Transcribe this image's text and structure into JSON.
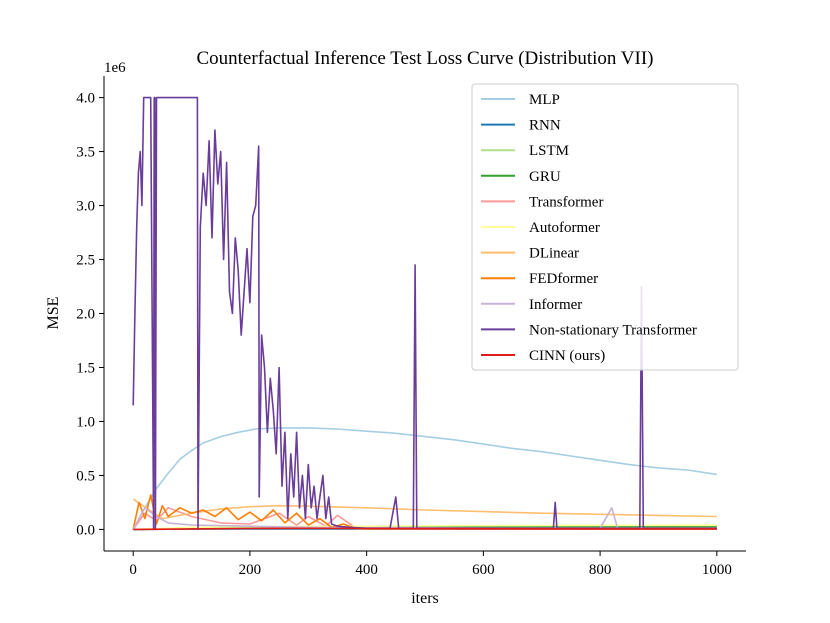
{
  "chart_data": {
    "type": "line",
    "title": "Counterfactual Inference Test Loss Curve (Distribution VII)",
    "xlabel": "iters",
    "ylabel": "MSE",
    "y_scale_label": "1e6",
    "xlim": [
      -50,
      1050
    ],
    "ylim": [
      -200000,
      4200000
    ],
    "x_ticks": [
      0,
      200,
      400,
      600,
      800,
      1000
    ],
    "x_tick_labels": [
      "0",
      "200",
      "400",
      "600",
      "800",
      "1000"
    ],
    "y_ticks": [
      0,
      500000,
      1000000,
      1500000,
      2000000,
      2500000,
      3000000,
      3500000,
      4000000
    ],
    "y_tick_labels": [
      "0.0",
      "0.5",
      "1.0",
      "1.5",
      "2.0",
      "2.5",
      "3.0",
      "3.5",
      "4.0"
    ],
    "legend_location": "upper-right",
    "series": [
      {
        "name": "MLP",
        "color": "#a6cee3",
        "x": [
          0,
          20,
          40,
          60,
          80,
          100,
          120,
          150,
          180,
          210,
          250,
          300,
          350,
          400,
          450,
          500,
          550,
          600,
          650,
          700,
          750,
          800,
          850,
          900,
          950,
          1000
        ],
        "y": [
          0,
          200000,
          380000,
          520000,
          650000,
          730000,
          800000,
          860000,
          900000,
          930000,
          940000,
          940000,
          930000,
          910000,
          890000,
          860000,
          830000,
          790000,
          750000,
          720000,
          680000,
          640000,
          600000,
          570000,
          550000,
          510000
        ]
      },
      {
        "name": "RNN",
        "color": "#1f78b4",
        "x": [
          0,
          100,
          200,
          400,
          600,
          800,
          1000
        ],
        "y": [
          0,
          3000,
          5000,
          4000,
          4000,
          4000,
          4000
        ]
      },
      {
        "name": "LSTM",
        "color": "#b2df8a",
        "x": [
          0,
          100,
          200,
          400,
          600,
          800,
          1000
        ],
        "y": [
          0,
          10000,
          20000,
          25000,
          28000,
          30000,
          30000
        ]
      },
      {
        "name": "GRU",
        "color": "#33a02c",
        "x": [
          0,
          100,
          200,
          400,
          600,
          800,
          1000
        ],
        "y": [
          0,
          8000,
          15000,
          18000,
          20000,
          22000,
          22000
        ]
      },
      {
        "name": "Transformer",
        "color": "#fb9a99",
        "x": [
          0,
          20,
          40,
          60,
          100,
          150,
          200,
          250,
          280,
          300,
          330,
          350,
          380,
          400,
          600,
          800,
          1000
        ],
        "y": [
          0,
          150000,
          80000,
          200000,
          120000,
          60000,
          50000,
          150000,
          40000,
          120000,
          30000,
          130000,
          20000,
          15000,
          12000,
          12000,
          12000
        ]
      },
      {
        "name": "Autoformer",
        "color": "#ffff99",
        "x": [
          0,
          100,
          200,
          400,
          600,
          800,
          1000
        ],
        "y": [
          0,
          20000,
          25000,
          30000,
          35000,
          38000,
          40000
        ]
      },
      {
        "name": "DLinear",
        "color": "#fdbf6f",
        "x": [
          0,
          50,
          100,
          150,
          200,
          250,
          300,
          400,
          500,
          600,
          700,
          800,
          900,
          1000
        ],
        "y": [
          280000,
          100000,
          150000,
          190000,
          210000,
          220000,
          215000,
          200000,
          180000,
          165000,
          150000,
          140000,
          130000,
          120000
        ]
      },
      {
        "name": "FEDformer",
        "color": "#ff7f00",
        "x": [
          0,
          10,
          20,
          30,
          40,
          50,
          60,
          80,
          100,
          120,
          140,
          160,
          180,
          200,
          220,
          240,
          260,
          280,
          300,
          320,
          340,
          360,
          380,
          400,
          600,
          800,
          1000
        ],
        "y": [
          0,
          250000,
          100000,
          320000,
          50000,
          220000,
          120000,
          200000,
          150000,
          180000,
          120000,
          200000,
          90000,
          160000,
          80000,
          180000,
          60000,
          150000,
          40000,
          100000,
          20000,
          50000,
          10000,
          5000,
          5000,
          5000,
          5000
        ]
      },
      {
        "name": "Informer",
        "color": "#cab2d6",
        "x": [
          0,
          20,
          40,
          60,
          100,
          200,
          300,
          400,
          600,
          800,
          820,
          830,
          840,
          1000
        ],
        "y": [
          0,
          200000,
          120000,
          60000,
          40000,
          30000,
          20000,
          15000,
          10000,
          10000,
          200000,
          10000,
          10000,
          10000
        ]
      },
      {
        "name": "Non-stationary Transformer",
        "color": "#6a3d9a",
        "x": [
          0,
          3,
          6,
          9,
          12,
          15,
          18,
          20,
          25,
          30,
          35,
          36,
          37,
          38,
          40,
          60,
          80,
          100,
          110,
          111,
          115,
          120,
          125,
          130,
          135,
          140,
          145,
          150,
          155,
          160,
          165,
          170,
          175,
          180,
          185,
          190,
          195,
          200,
          205,
          210,
          215,
          216,
          220,
          225,
          230,
          235,
          240,
          245,
          250,
          255,
          260,
          265,
          270,
          275,
          280,
          285,
          290,
          295,
          300,
          305,
          310,
          315,
          320,
          325,
          330,
          335,
          340,
          350,
          370,
          400,
          440,
          450,
          455,
          460,
          470,
          480,
          483,
          486,
          500,
          550,
          600,
          650,
          700,
          720,
          723,
          726,
          750,
          800,
          850,
          868,
          871,
          874,
          900,
          950,
          1000
        ],
        "y": [
          1150000,
          2000000,
          2800000,
          3300000,
          3500000,
          3000000,
          4000000,
          4000000,
          4000000,
          4000000,
          0,
          4000000,
          4000000,
          0,
          4000000,
          4000000,
          4000000,
          4000000,
          4000000,
          0,
          2800000,
          3300000,
          3000000,
          3600000,
          2700000,
          3700000,
          3200000,
          3500000,
          2500000,
          3400000,
          2200000,
          2000000,
          2700000,
          2400000,
          1800000,
          2200000,
          2600000,
          2100000,
          2900000,
          3000000,
          3550000,
          300000,
          1800000,
          1500000,
          900000,
          1400000,
          1100000,
          700000,
          1500000,
          400000,
          900000,
          100000,
          700000,
          300000,
          900000,
          200000,
          500000,
          100000,
          600000,
          200000,
          400000,
          100000,
          300000,
          500000,
          100000,
          300000,
          50000,
          30000,
          20000,
          10000,
          10000,
          300000,
          10000,
          10000,
          10000,
          10000,
          2450000,
          10000,
          10000,
          10000,
          10000,
          10000,
          10000,
          10000,
          250000,
          10000,
          10000,
          10000,
          10000,
          10000,
          2250000,
          10000,
          10000,
          10000,
          10000
        ]
      },
      {
        "name": "CINN (ours)",
        "color": "#e31a1c",
        "x": [
          0,
          100,
          200,
          300,
          400,
          600,
          800,
          1000
        ],
        "y": [
          0,
          5000,
          8000,
          10000,
          8000,
          6000,
          5000,
          5000
        ]
      }
    ]
  }
}
